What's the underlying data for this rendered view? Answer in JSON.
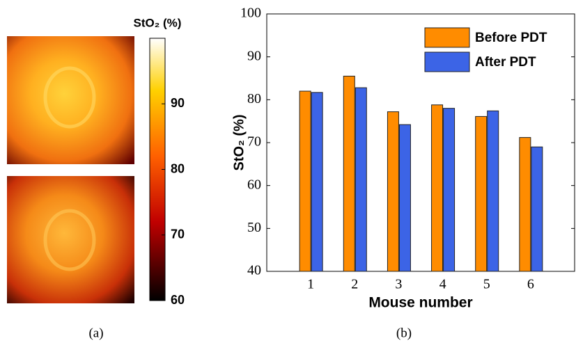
{
  "chart_data": [
    {
      "type": "colorbar",
      "title": "StO₂ (%)",
      "clim": [
        60,
        100
      ],
      "cticks": [
        60,
        70,
        80,
        90
      ],
      "caption": "(a)"
    },
    {
      "type": "bar",
      "caption": "(b)",
      "xlabel": "Mouse number",
      "ylabel": "StO₂ (%)",
      "categories": [
        "1",
        "2",
        "3",
        "4",
        "5",
        "6"
      ],
      "series": [
        {
          "name": "Before PDT",
          "color": "#ff8c00",
          "values": [
            82,
            85.5,
            77.2,
            78.8,
            76.1,
            71.2
          ]
        },
        {
          "name": "After PDT",
          "color": "#3c64e6",
          "values": [
            81.7,
            82.8,
            74.2,
            78,
            77.4,
            69
          ]
        }
      ],
      "ylim": [
        40,
        100
      ],
      "yticks": [
        40,
        50,
        60,
        70,
        80,
        90,
        100
      ],
      "legend": "upper right"
    }
  ]
}
